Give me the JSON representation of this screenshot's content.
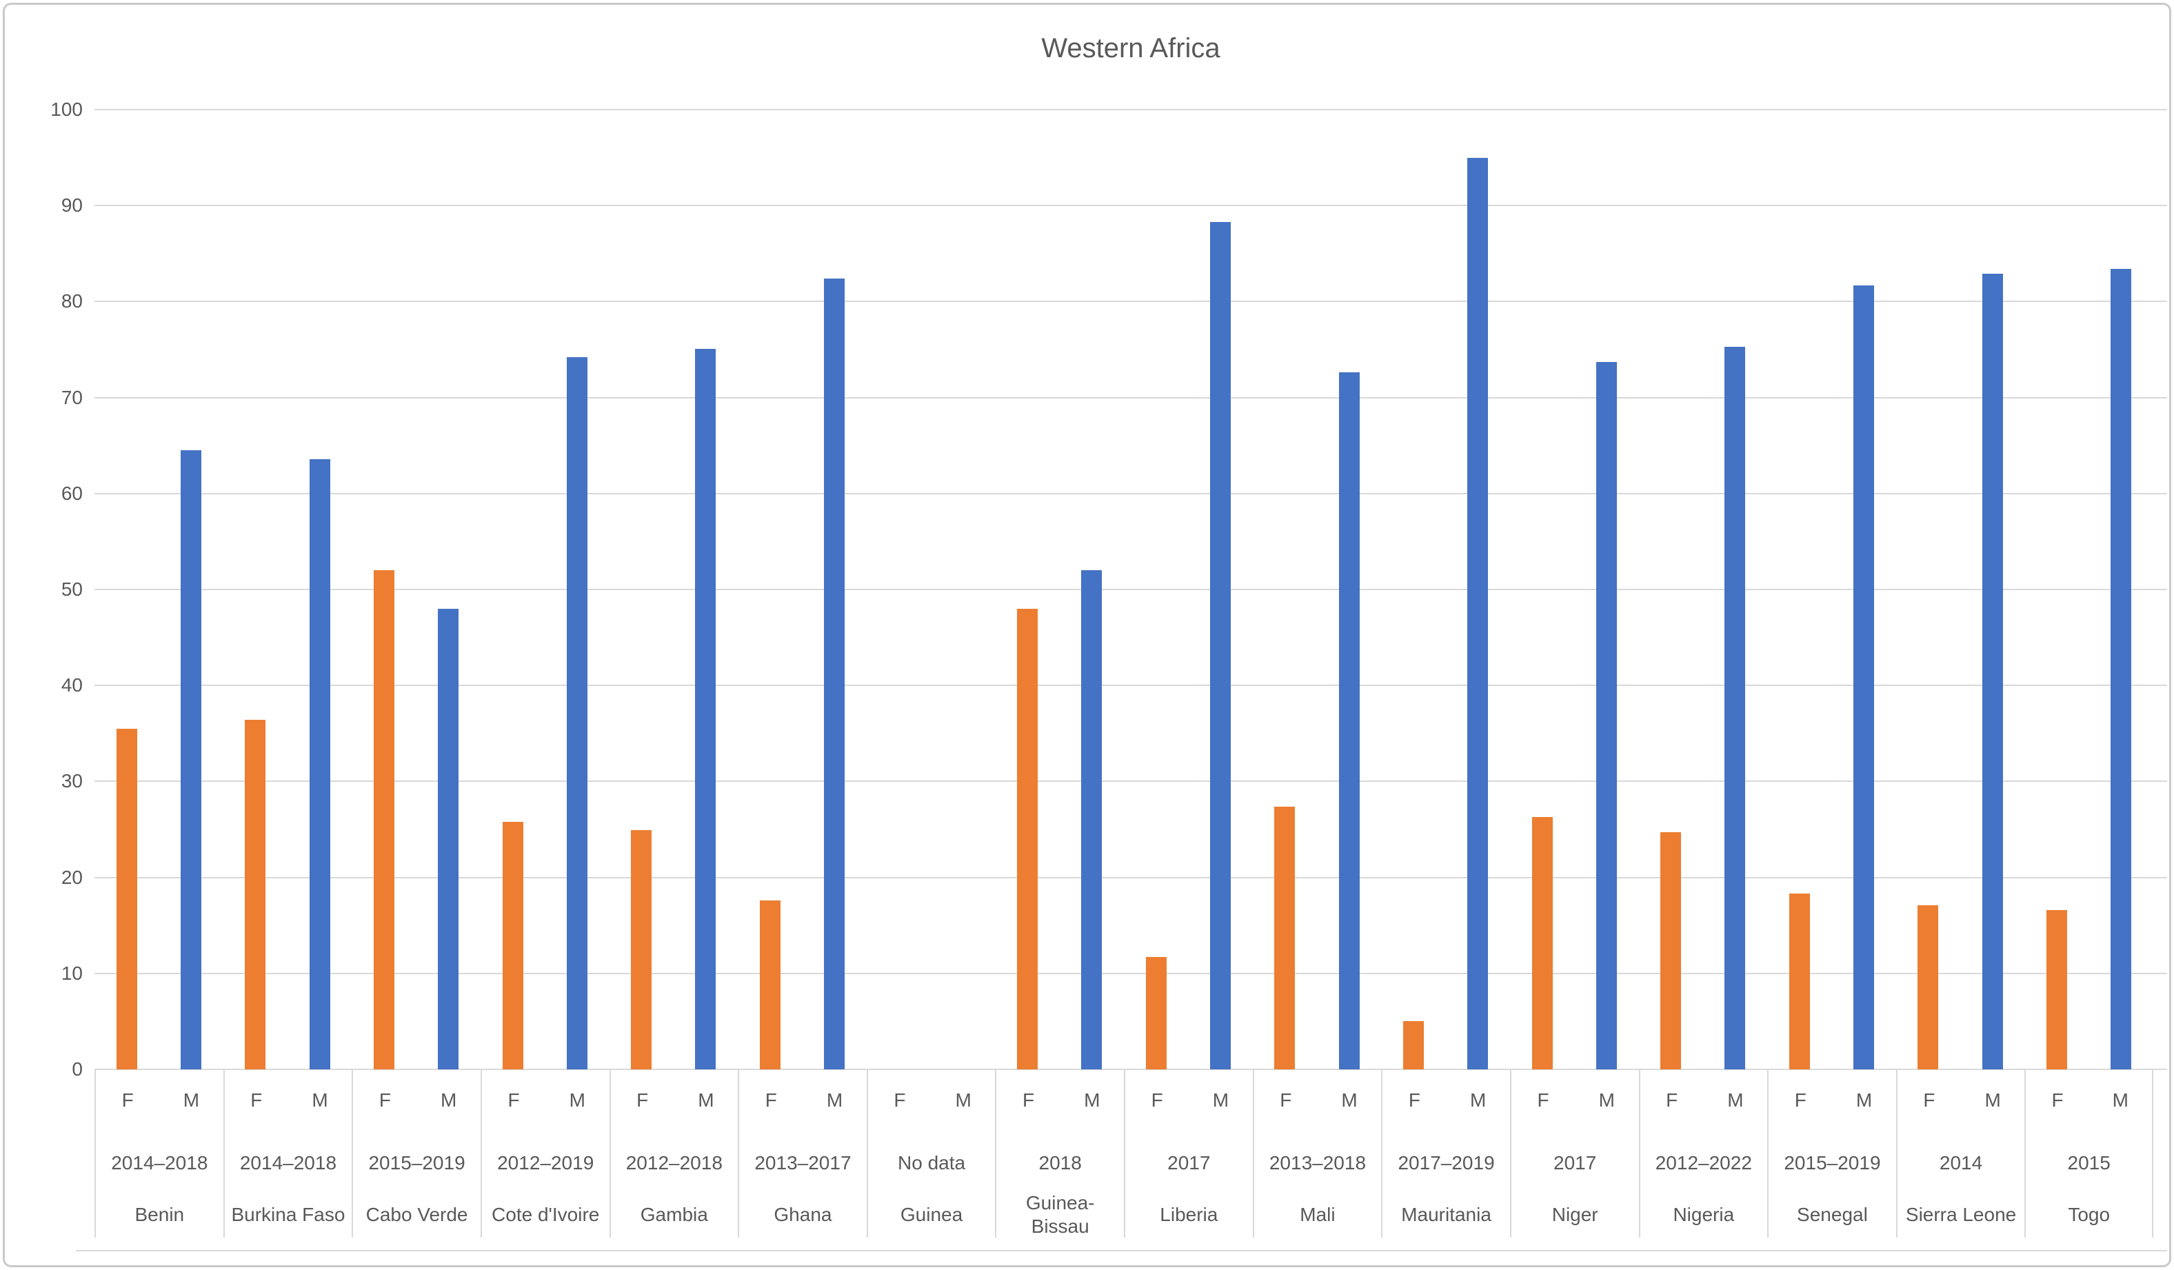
{
  "title": "Western Africa",
  "colors": {
    "female_bar": "#ED7D31",
    "male_bar": "#4472C4",
    "gridline": "#D9D9D9",
    "axis_text": "#595959",
    "frame_border": "#C9C9C9"
  },
  "series_labels": {
    "female": "F",
    "male": "M"
  },
  "chart_data": {
    "type": "bar",
    "title": "Western Africa",
    "grid": true,
    "legend_position": "none",
    "ylim": [
      0,
      100
    ],
    "y_ticks": [
      0,
      10,
      20,
      30,
      40,
      50,
      60,
      70,
      80,
      90,
      100
    ],
    "categories": [
      "Benin",
      "Burkina Faso",
      "Cabo Verde",
      "Cote d'Ivoire",
      "Gambia",
      "Ghana",
      "Guinea",
      "Guinea-\nBissau",
      "Liberia",
      "Mali",
      "Mauritania",
      "Niger",
      "Nigeria",
      "Senegal",
      "Sierra Leone",
      "Togo"
    ],
    "category_periods": [
      "2014–2018",
      "2014–2018",
      "2015–2019",
      "2012–2019",
      "2012–2018",
      "2013–2017",
      "No data",
      "2018",
      "2017",
      "2013–2018",
      "2017–2019",
      "2017",
      "2012–2022",
      "2015–2019",
      "2014",
      "2015"
    ],
    "series": [
      {
        "name": "F",
        "color": "#ED7D31",
        "values": [
          35.5,
          36.4,
          52.0,
          25.8,
          24.9,
          17.6,
          null,
          48.0,
          11.7,
          27.4,
          5.0,
          26.3,
          24.7,
          18.3,
          17.1,
          16.6
        ]
      },
      {
        "name": "M",
        "color": "#4472C4",
        "values": [
          64.5,
          63.6,
          48.0,
          74.2,
          75.1,
          82.4,
          null,
          52.0,
          88.3,
          72.6,
          95.0,
          73.7,
          75.3,
          81.7,
          82.9,
          83.4
        ]
      }
    ]
  }
}
